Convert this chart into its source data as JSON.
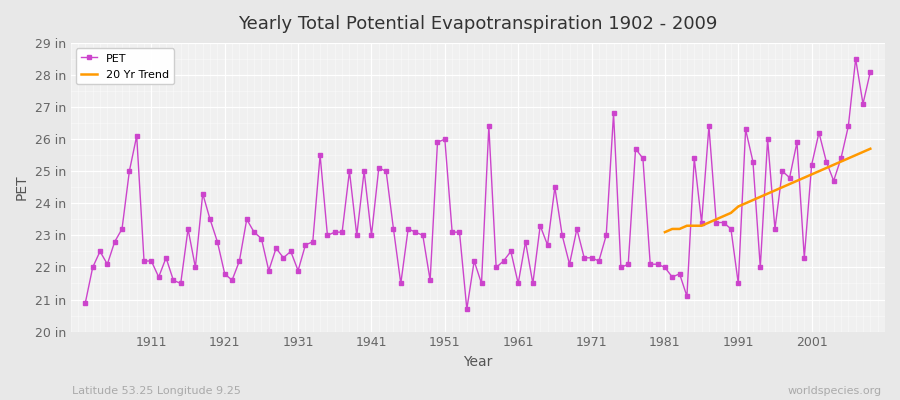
{
  "title": "Yearly Total Potential Evapotranspiration 1902 - 2009",
  "xlabel": "Year",
  "ylabel": "PET",
  "subtitle": "Latitude 53.25 Longitude 9.25",
  "watermark": "worldspecies.org",
  "bg_color": "#e8e8e8",
  "plot_bg_color": "#f0f0f0",
  "pet_color": "#cc44cc",
  "trend_color": "#ff9900",
  "ylim": [
    20,
    29
  ],
  "ytick_labels": [
    "20 in",
    "21 in",
    "22 in",
    "23 in",
    "24 in",
    "25 in",
    "26 in",
    "27 in",
    "28 in",
    "29 in"
  ],
  "ytick_values": [
    20,
    21,
    22,
    23,
    24,
    25,
    26,
    27,
    28,
    29
  ],
  "years": [
    1902,
    1903,
    1904,
    1905,
    1906,
    1907,
    1908,
    1909,
    1910,
    1911,
    1912,
    1913,
    1914,
    1915,
    1916,
    1917,
    1918,
    1919,
    1920,
    1921,
    1922,
    1923,
    1924,
    1925,
    1926,
    1927,
    1928,
    1929,
    1930,
    1931,
    1932,
    1933,
    1934,
    1935,
    1936,
    1937,
    1938,
    1939,
    1940,
    1941,
    1942,
    1943,
    1944,
    1945,
    1946,
    1947,
    1948,
    1949,
    1950,
    1951,
    1952,
    1953,
    1954,
    1955,
    1956,
    1957,
    1958,
    1959,
    1960,
    1961,
    1962,
    1963,
    1964,
    1965,
    1966,
    1967,
    1968,
    1969,
    1970,
    1971,
    1972,
    1973,
    1974,
    1975,
    1976,
    1977,
    1978,
    1979,
    1980,
    1981,
    1982,
    1983,
    1984,
    1985,
    1986,
    1987,
    1988,
    1989,
    1990,
    1991,
    1992,
    1993,
    1994,
    1995,
    1996,
    1997,
    1998,
    1999,
    2000,
    2001,
    2002,
    2003,
    2004,
    2005,
    2006,
    2007,
    2008,
    2009
  ],
  "pet_values": [
    20.9,
    22.0,
    22.5,
    22.1,
    22.8,
    23.2,
    25.0,
    26.1,
    22.2,
    22.2,
    21.7,
    22.3,
    21.6,
    21.5,
    23.2,
    22.0,
    24.3,
    23.5,
    22.8,
    21.8,
    21.6,
    22.2,
    23.5,
    23.1,
    22.9,
    21.9,
    22.6,
    22.3,
    22.5,
    21.9,
    22.7,
    22.8,
    25.5,
    23.0,
    23.1,
    23.1,
    25.0,
    23.0,
    25.0,
    23.0,
    25.1,
    25.0,
    23.2,
    21.5,
    23.2,
    23.1,
    23.0,
    21.6,
    25.9,
    26.0,
    23.1,
    23.1,
    20.7,
    22.2,
    21.5,
    26.4,
    22.0,
    22.2,
    22.5,
    21.5,
    22.8,
    21.5,
    23.3,
    22.7,
    24.5,
    23.0,
    22.1,
    23.2,
    22.3,
    22.3,
    22.2,
    23.0,
    26.8,
    22.0,
    22.1,
    25.7,
    25.4,
    22.1,
    22.1,
    22.0,
    21.7,
    21.8,
    21.1,
    25.4,
    23.4,
    26.4,
    23.4,
    23.4,
    23.2,
    21.5,
    26.3,
    25.3,
    22.0,
    26.0,
    23.2,
    25.0,
    24.8,
    25.9,
    22.3,
    25.2,
    26.2,
    25.3,
    24.7,
    25.4,
    26.4,
    28.5,
    27.1,
    28.1
  ],
  "trend_years": [
    1981,
    1982,
    1983,
    1984,
    1985,
    1986,
    1987,
    1988,
    1989,
    1990,
    1991,
    1992,
    1993,
    1994,
    1995,
    1996,
    1997,
    1998,
    1999,
    2000,
    2001,
    2002,
    2003,
    2004,
    2005,
    2006,
    2007,
    2008,
    2009
  ],
  "trend_values": [
    23.1,
    23.2,
    23.2,
    23.3,
    23.3,
    23.3,
    23.4,
    23.5,
    23.6,
    23.7,
    23.9,
    24.0,
    24.1,
    24.2,
    24.3,
    24.4,
    24.5,
    24.6,
    24.7,
    24.8,
    24.9,
    25.0,
    25.1,
    25.2,
    25.3,
    25.4,
    25.5,
    25.6,
    25.7
  ]
}
